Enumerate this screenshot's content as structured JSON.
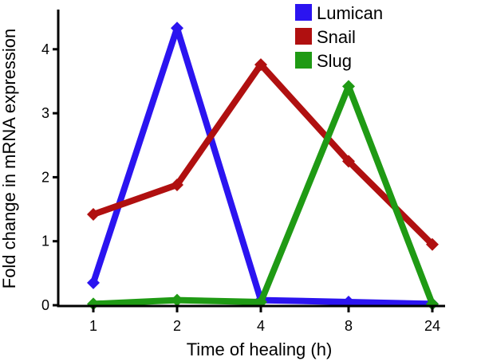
{
  "chart_data": {
    "type": "line",
    "categories": [
      "1",
      "2",
      "4",
      "8",
      "24"
    ],
    "xlabel": "Time of healing (h)",
    "ylabel": "Fold change in mRNA expression",
    "ylim": [
      0,
      4.5
    ],
    "yticks": [
      0,
      1,
      2,
      3,
      4
    ],
    "grid": false,
    "legend_position": "top-right",
    "series": [
      {
        "name": "Lumican",
        "color": "#2b14f0",
        "values": [
          0.35,
          4.33,
          0.08,
          0.05,
          0.02
        ]
      },
      {
        "name": "Snail",
        "color": "#b01010",
        "values": [
          1.42,
          1.88,
          3.76,
          2.25,
          0.95
        ]
      },
      {
        "name": "Slug",
        "color": "#1f9a14",
        "values": [
          0.02,
          0.08,
          0.05,
          3.42,
          0.02
        ]
      }
    ]
  }
}
